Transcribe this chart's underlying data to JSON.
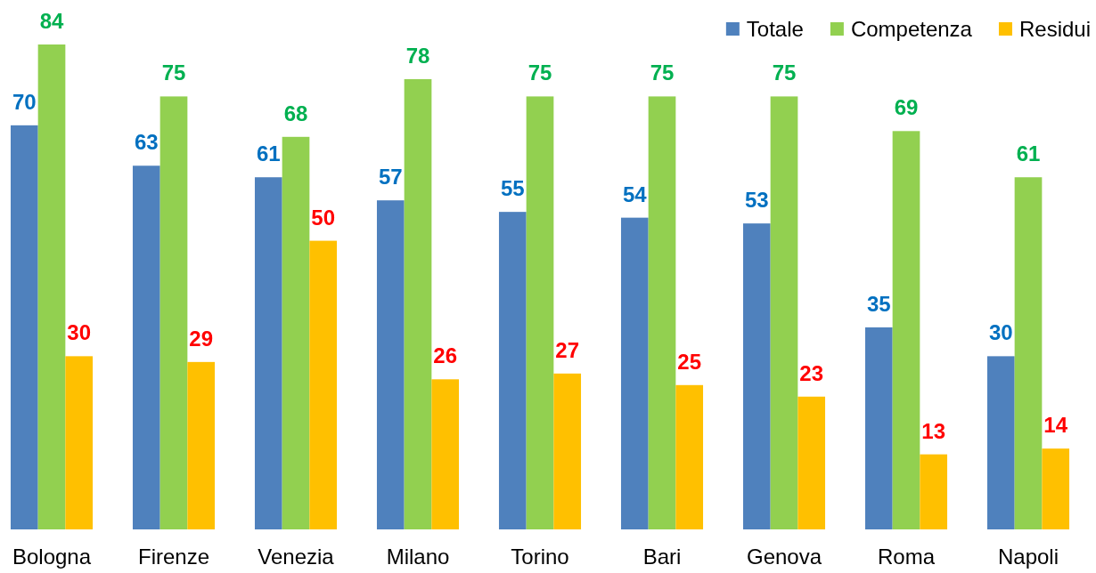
{
  "chart_data": {
    "type": "bar",
    "categories": [
      "Bologna",
      "Firenze",
      "Venezia",
      "Milano",
      "Torino",
      "Bari",
      "Genova",
      "Roma",
      "Napoli"
    ],
    "series": [
      {
        "name": "Totale",
        "color": "#4f81bd",
        "values": [
          70,
          63,
          61,
          57,
          55,
          54,
          53,
          35,
          30
        ]
      },
      {
        "name": "Competenza",
        "color": "#92d050",
        "values": [
          84,
          75,
          68,
          78,
          75,
          75,
          75,
          69,
          61
        ]
      },
      {
        "name": "Residui",
        "color": "#ffc000",
        "values": [
          30,
          29,
          50,
          26,
          27,
          25,
          23,
          13,
          14
        ]
      }
    ],
    "data_labels": true,
    "legend": "top right"
  }
}
